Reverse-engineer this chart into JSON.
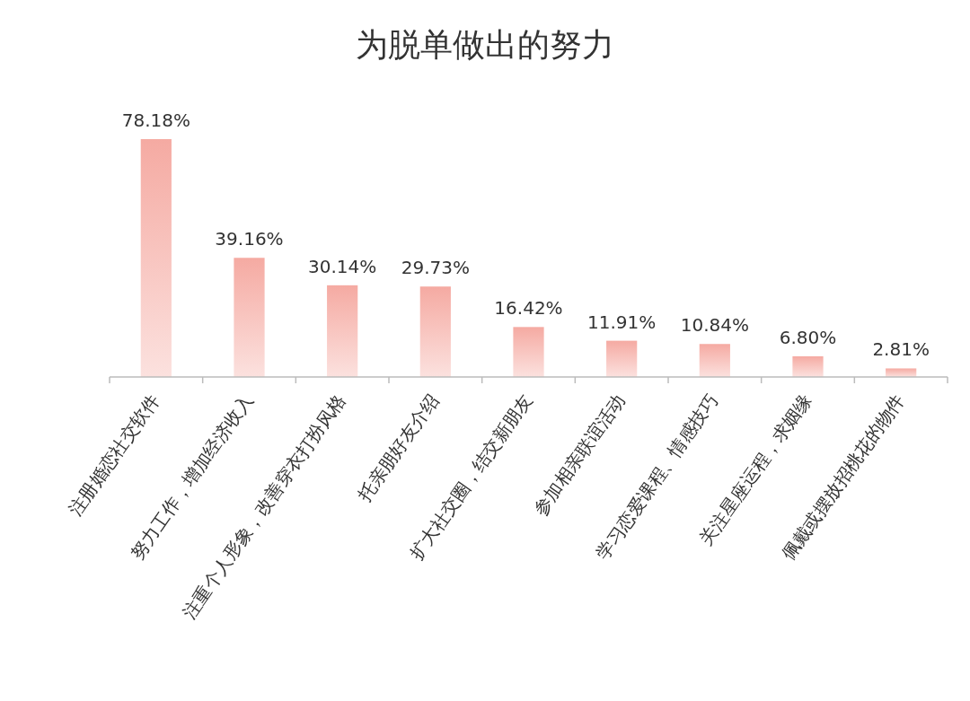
{
  "chart_data": {
    "type": "bar",
    "title": "为脱单做出的努力",
    "categories": [
      "注册婚恋社交软件",
      "努力工作，增加经济收入",
      "注重个人形象，改善穿衣打扮风格",
      "托亲朋好友介绍",
      "扩大社交圈，结交新朋友",
      "参加相亲联谊活动",
      "学习恋爱课程、情感技巧",
      "关注星座运程，求姻缘",
      "佩戴或摆放招桃花的物件"
    ],
    "values": [
      78.18,
      39.16,
      30.14,
      29.73,
      16.42,
      11.91,
      10.84,
      6.8,
      2.81
    ],
    "value_labels": [
      "78.18%",
      "39.16%",
      "30.14%",
      "29.73%",
      "16.42%",
      "11.91%",
      "10.84%",
      "6.80%",
      "2.81%"
    ],
    "color": "#f5aaa2"
  }
}
